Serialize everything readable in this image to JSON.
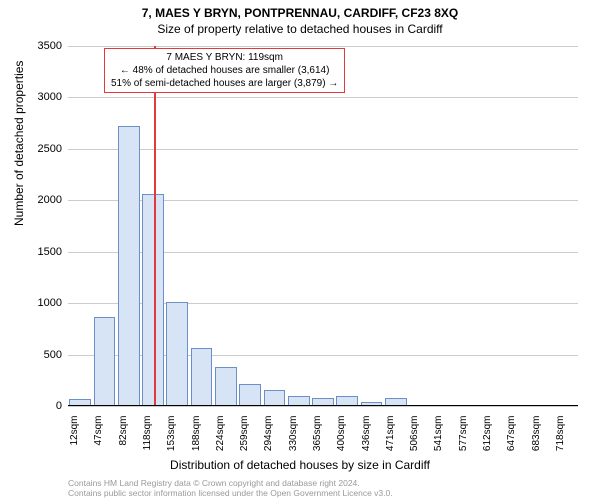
{
  "title": "7, MAES Y BRYN, PONTPRENNAU, CARDIFF, CF23 8XQ",
  "subtitle": "Size of property relative to detached houses in Cardiff",
  "ylabel": "Number of detached properties",
  "xlabel": "Distribution of detached houses by size in Cardiff",
  "chart": {
    "type": "bar",
    "bar_fill": "#d6e4f5",
    "bar_border": "#6c8fc7",
    "grid_color": "#cccccc",
    "background_color": "#ffffff",
    "marker_color": "#e03a3a",
    "axis_fontsize": 11,
    "title_fontsize": 12,
    "ylim": [
      0,
      3500
    ],
    "yticks": [
      0,
      500,
      1000,
      1500,
      2000,
      2500,
      3000,
      3500
    ],
    "xticks": [
      "12sqm",
      "47sqm",
      "82sqm",
      "118sqm",
      "153sqm",
      "188sqm",
      "224sqm",
      "259sqm",
      "294sqm",
      "330sqm",
      "365sqm",
      "400sqm",
      "436sqm",
      "471sqm",
      "506sqm",
      "541sqm",
      "577sqm",
      "612sqm",
      "647sqm",
      "683sqm",
      "718sqm"
    ],
    "values": [
      70,
      870,
      2720,
      2060,
      1010,
      560,
      380,
      210,
      160,
      100,
      80,
      100,
      40,
      80,
      0,
      0,
      0,
      0,
      0,
      0,
      0
    ],
    "marker_value_sqm": 119,
    "bar_width_ratio": 0.9
  },
  "annotation": {
    "line1": "7 MAES Y BRYN: 119sqm",
    "line2": "← 48% of detached houses are smaller (3,614)",
    "line3": "51% of semi-detached houses are larger (3,879) →"
  },
  "footer": {
    "line1": "Contains HM Land Registry data © Crown copyright and database right 2024.",
    "line2": "Contains public sector information licensed under the Open Government Licence v3.0."
  }
}
